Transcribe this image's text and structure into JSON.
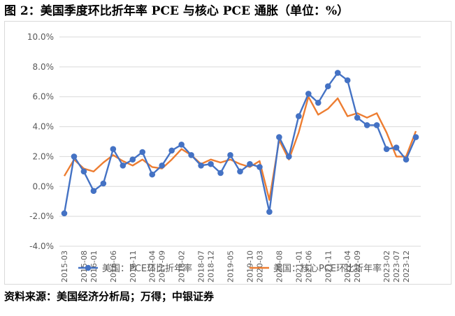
{
  "title": "图 2：美国季度环比折年率 PCE 与核心 PCE 通胀（单位：%）",
  "source": "资料来源：美国经济分析局；万得；中银证券",
  "chart_data": {
    "type": "line",
    "title": "",
    "xlabel": "",
    "ylabel": "",
    "ylim": [
      -4.0,
      10.0
    ],
    "y_ticks": [
      -4.0,
      -2.0,
      0.0,
      2.0,
      4.0,
      6.0,
      8.0,
      10.0
    ],
    "y_tick_labels": [
      "-4.0%",
      "-2.0%",
      "0.0%",
      "2.0%",
      "4.0%",
      "6.0%",
      "8.0%",
      "10.0%"
    ],
    "grid": true,
    "legend_position": "bottom",
    "x": [
      "2015-03",
      "2015-06",
      "2015-09",
      "2015-12",
      "2016-03",
      "2016-06",
      "2016-09",
      "2016-12",
      "2017-03",
      "2017-06",
      "2017-09",
      "2017-12",
      "2018-03",
      "2018-06",
      "2018-09",
      "2018-12",
      "2019-03",
      "2019-06",
      "2019-09",
      "2019-12",
      "2020-03",
      "2020-06",
      "2020-09",
      "2020-12",
      "2021-03",
      "2021-06",
      "2021-09",
      "2021-12",
      "2022-03",
      "2022-06",
      "2022-09",
      "2022-12",
      "2023-03",
      "2023-06",
      "2023-09",
      "2023-12",
      "2024-03"
    ],
    "x_tick_labels": [
      "2015-03",
      "2015-08",
      "2016-01",
      "2016-06",
      "2016-11",
      "2017-04",
      "2017-09",
      "2018-02",
      "2018-07",
      "2018-12",
      "2019-05",
      "2019-10",
      "2020-03",
      "2020-08",
      "2021-01",
      "2021-06",
      "2021-11",
      "2022-04",
      "2022-09",
      "2023-02",
      "2023-07",
      "2023-12"
    ],
    "series": [
      {
        "name": "美国：PCE环比折年率",
        "color": "#4472C4",
        "marker": "circle",
        "values": [
          -1.8,
          2.0,
          1.0,
          -0.3,
          0.2,
          2.5,
          1.4,
          1.8,
          2.3,
          0.8,
          1.4,
          2.4,
          2.8,
          2.1,
          1.4,
          1.5,
          0.9,
          2.1,
          1.0,
          1.5,
          1.3,
          -1.7,
          3.3,
          2.0,
          4.7,
          6.2,
          5.6,
          6.7,
          7.6,
          7.1,
          4.6,
          4.1,
          4.1,
          2.5,
          2.6,
          1.8,
          3.3
        ]
      },
      {
        "name": "美国：核心PCE环比折年率",
        "color": "#ED7D31",
        "marker": "none",
        "values": [
          0.7,
          1.8,
          1.2,
          1.0,
          1.6,
          2.1,
          1.7,
          1.4,
          1.8,
          1.3,
          1.2,
          1.8,
          2.5,
          2.1,
          1.5,
          1.8,
          1.6,
          1.8,
          1.5,
          1.3,
          1.7,
          -0.9,
          3.1,
          1.8,
          3.6,
          6.0,
          4.8,
          5.2,
          5.9,
          4.7,
          4.9,
          4.6,
          4.9,
          3.6,
          2.0,
          2.0,
          3.7
        ]
      }
    ]
  }
}
